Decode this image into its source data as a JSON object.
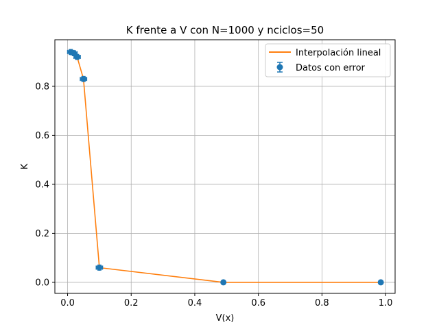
{
  "chart_data": {
    "type": "line",
    "title": "K frente a V con N=1000 y nciclos=50",
    "xlabel": "V(x)",
    "ylabel": "K",
    "xlim": [
      -0.04,
      1.03
    ],
    "ylim": [
      -0.045,
      0.99
    ],
    "xticks": [
      0.0,
      0.2,
      0.4,
      0.6,
      0.8,
      1.0
    ],
    "xtick_labels": [
      "0.0",
      "0.2",
      "0.4",
      "0.6",
      "0.8",
      "1.0"
    ],
    "yticks": [
      0.0,
      0.2,
      0.4,
      0.6,
      0.8
    ],
    "ytick_labels": [
      "0.0",
      "0.2",
      "0.4",
      "0.6",
      "0.8"
    ],
    "grid": true,
    "legend_position": "top-right",
    "series": [
      {
        "name": "Interpolación lineal",
        "kind": "line",
        "color": "#ff7f0e",
        "x": [
          0.01,
          0.02,
          0.03,
          0.05,
          0.1,
          0.49,
          0.985
        ],
        "y": [
          0.94,
          0.935,
          0.92,
          0.83,
          0.06,
          0.0,
          0.0
        ]
      },
      {
        "name": "Datos con error",
        "kind": "errorbar",
        "color": "#1f77b4",
        "x": [
          0.01,
          0.02,
          0.03,
          0.05,
          0.1,
          0.49,
          0.985
        ],
        "y": [
          0.94,
          0.935,
          0.92,
          0.83,
          0.06,
          0.0,
          0.0
        ],
        "xerr": [
          0.01,
          0.01,
          0.01,
          0.01,
          0.01,
          0.0,
          0.0
        ],
        "yerr": [
          0.01,
          0.01,
          0.01,
          0.01,
          0.01,
          0.0,
          0.0
        ]
      }
    ]
  }
}
